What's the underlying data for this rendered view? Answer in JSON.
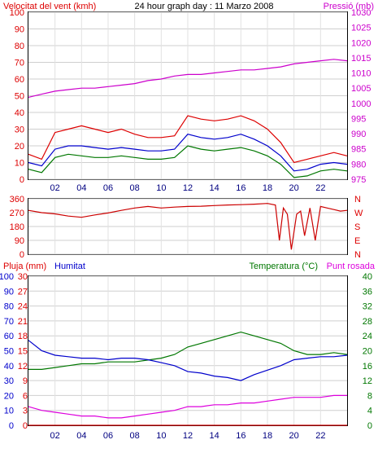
{
  "chart_data": [
    {
      "type": "line",
      "title": "24 hour graph day : 11 Marzo 2008",
      "left_axis_title": "Velocitat del vent (kmh)",
      "right_axis_title": "Pressió (mb)",
      "left_ticks": [
        "100",
        "90",
        "80",
        "70",
        "60",
        "50",
        "40",
        "30",
        "20",
        "10",
        "0"
      ],
      "right_ticks": [
        "1030",
        "1025",
        "1020",
        "1015",
        "1010",
        "1005",
        "1000",
        "995",
        "990",
        "985",
        "980",
        "975"
      ],
      "x_ticks": [
        "02",
        "04",
        "06",
        "08",
        "10",
        "12",
        "14",
        "16",
        "18",
        "20",
        "22"
      ],
      "ylim": [
        0,
        100
      ],
      "y2lim": [
        975,
        1030
      ],
      "xlim": [
        0,
        24
      ],
      "colors": {
        "gust": "#dd0000",
        "avg_wind": "#0000cc",
        "min_wind": "#007700",
        "pressure": "#cc00cc"
      },
      "pressure": {
        "x": [
          0,
          1,
          2,
          3,
          4,
          5,
          6,
          7,
          8,
          9,
          10,
          11,
          12,
          13,
          14,
          15,
          16,
          17,
          18,
          19,
          20,
          21,
          22,
          23,
          24
        ],
        "y": [
          1002,
          1003,
          1004,
          1004.5,
          1005,
          1005,
          1005.5,
          1006,
          1006.5,
          1007.5,
          1008,
          1009,
          1009.5,
          1009.5,
          1010,
          1010.5,
          1011,
          1011,
          1011.5,
          1012,
          1013,
          1013.5,
          1014,
          1014.5,
          1014
        ]
      },
      "gust": {
        "x": [
          0,
          1,
          2,
          3,
          4,
          5,
          6,
          7,
          8,
          9,
          10,
          11,
          12,
          13,
          14,
          15,
          16,
          17,
          18,
          19,
          20,
          21,
          22,
          23,
          24
        ],
        "y": [
          15,
          12,
          28,
          30,
          32,
          30,
          28,
          30,
          27,
          25,
          25,
          26,
          38,
          36,
          35,
          36,
          38,
          35,
          30,
          22,
          10,
          12,
          14,
          16,
          14
        ]
      },
      "avg_wind": {
        "x": [
          0,
          1,
          2,
          3,
          4,
          5,
          6,
          7,
          8,
          9,
          10,
          11,
          12,
          13,
          14,
          15,
          16,
          17,
          18,
          19,
          20,
          21,
          22,
          23,
          24
        ],
        "y": [
          10,
          8,
          18,
          20,
          20,
          19,
          18,
          19,
          18,
          17,
          17,
          18,
          27,
          25,
          24,
          25,
          27,
          24,
          20,
          14,
          5,
          6,
          9,
          10,
          9
        ]
      },
      "min_wind": {
        "x": [
          0,
          1,
          2,
          3,
          4,
          5,
          6,
          7,
          8,
          9,
          10,
          11,
          12,
          13,
          14,
          15,
          16,
          17,
          18,
          19,
          20,
          21,
          22,
          23,
          24
        ],
        "y": [
          6,
          4,
          13,
          15,
          14,
          13,
          13,
          14,
          13,
          12,
          12,
          13,
          20,
          18,
          17,
          18,
          19,
          17,
          14,
          9,
          1,
          2,
          5,
          6,
          5
        ]
      }
    },
    {
      "type": "line",
      "left_ticks": [
        "360",
        "270",
        "180",
        "90",
        "0"
      ],
      "right_ticks": [
        "N",
        "W",
        "S",
        "E",
        "N"
      ],
      "ylim": [
        0,
        360
      ],
      "xlim": [
        0,
        24
      ],
      "colors": {
        "direction": "#cc0000"
      },
      "direction": {
        "x": [
          0,
          1,
          2,
          3,
          4,
          5,
          6,
          7,
          8,
          9,
          10,
          11,
          12,
          13,
          14,
          15,
          16,
          17,
          18,
          18.6,
          18.9,
          19.2,
          19.5,
          19.8,
          20.2,
          20.5,
          20.8,
          21.2,
          21.6,
          22,
          22.5,
          23,
          23.5,
          24
        ],
        "y": [
          285,
          270,
          262,
          248,
          240,
          255,
          268,
          285,
          300,
          310,
          300,
          306,
          310,
          312,
          316,
          320,
          322,
          325,
          330,
          320,
          90,
          300,
          260,
          30,
          260,
          280,
          120,
          300,
          90,
          310,
          300,
          290,
          280,
          285
        ]
      }
    },
    {
      "type": "line",
      "left_axis_title": "Pluja (mm)",
      "left2_axis_title": "Humitat",
      "right_axis_title": "Temperatura (°C)",
      "right2_axis_title": "Punt rosada",
      "rain_ticks": [
        "30",
        "27",
        "24",
        "21",
        "18",
        "15",
        "12",
        "9",
        "6",
        "3",
        "0"
      ],
      "humidity_ticks": [
        "100",
        "90",
        "80",
        "70",
        "60",
        "50",
        "40",
        "30",
        "20",
        "10",
        "0"
      ],
      "temp_ticks": [
        "40",
        "36",
        "32",
        "28",
        "24",
        "20",
        "16",
        "12",
        "8",
        "4",
        "0"
      ],
      "ylim_rain": [
        0,
        30
      ],
      "ylim_humidity": [
        0,
        100
      ],
      "ylim_temp": [
        0,
        40
      ],
      "xlim": [
        0,
        24
      ],
      "colors": {
        "humidity": "#0000cc",
        "temperature": "#007700",
        "dewpoint": "#dd00dd",
        "rain": "#cc0000"
      },
      "humidity": {
        "x": [
          0,
          1,
          2,
          3,
          4,
          5,
          6,
          7,
          8,
          9,
          10,
          11,
          12,
          13,
          14,
          15,
          16,
          17,
          18,
          19,
          20,
          21,
          22,
          23,
          24
        ],
        "y": [
          57,
          50,
          47,
          46,
          45,
          45,
          44,
          45,
          45,
          44,
          42,
          40,
          36,
          35,
          33,
          32,
          30,
          34,
          37,
          40,
          44,
          45,
          46,
          46,
          47
        ]
      },
      "temperature": {
        "x": [
          0,
          1,
          2,
          3,
          4,
          5,
          6,
          7,
          8,
          9,
          10,
          11,
          12,
          13,
          14,
          15,
          16,
          17,
          18,
          19,
          20,
          21,
          22,
          23,
          24
        ],
        "y": [
          15,
          15,
          15.5,
          16,
          16.5,
          16.5,
          17,
          17,
          17,
          17.5,
          18,
          19,
          21,
          22,
          23,
          24,
          25,
          24,
          23,
          22,
          20,
          19,
          19,
          19.5,
          19
        ]
      },
      "dewpoint": {
        "x": [
          0,
          1,
          2,
          3,
          4,
          5,
          6,
          7,
          8,
          9,
          10,
          11,
          12,
          13,
          14,
          15,
          16,
          17,
          18,
          19,
          20,
          21,
          22,
          23,
          24
        ],
        "y": [
          5,
          4,
          3.5,
          3,
          2.5,
          2.5,
          2,
          2,
          2.5,
          3,
          3.5,
          4,
          5,
          5,
          5.5,
          5.5,
          6,
          6,
          6.5,
          7,
          7.5,
          7.5,
          7.5,
          8,
          8
        ]
      },
      "rain": {
        "x": [
          0,
          24
        ],
        "y": [
          0,
          0
        ]
      }
    }
  ]
}
